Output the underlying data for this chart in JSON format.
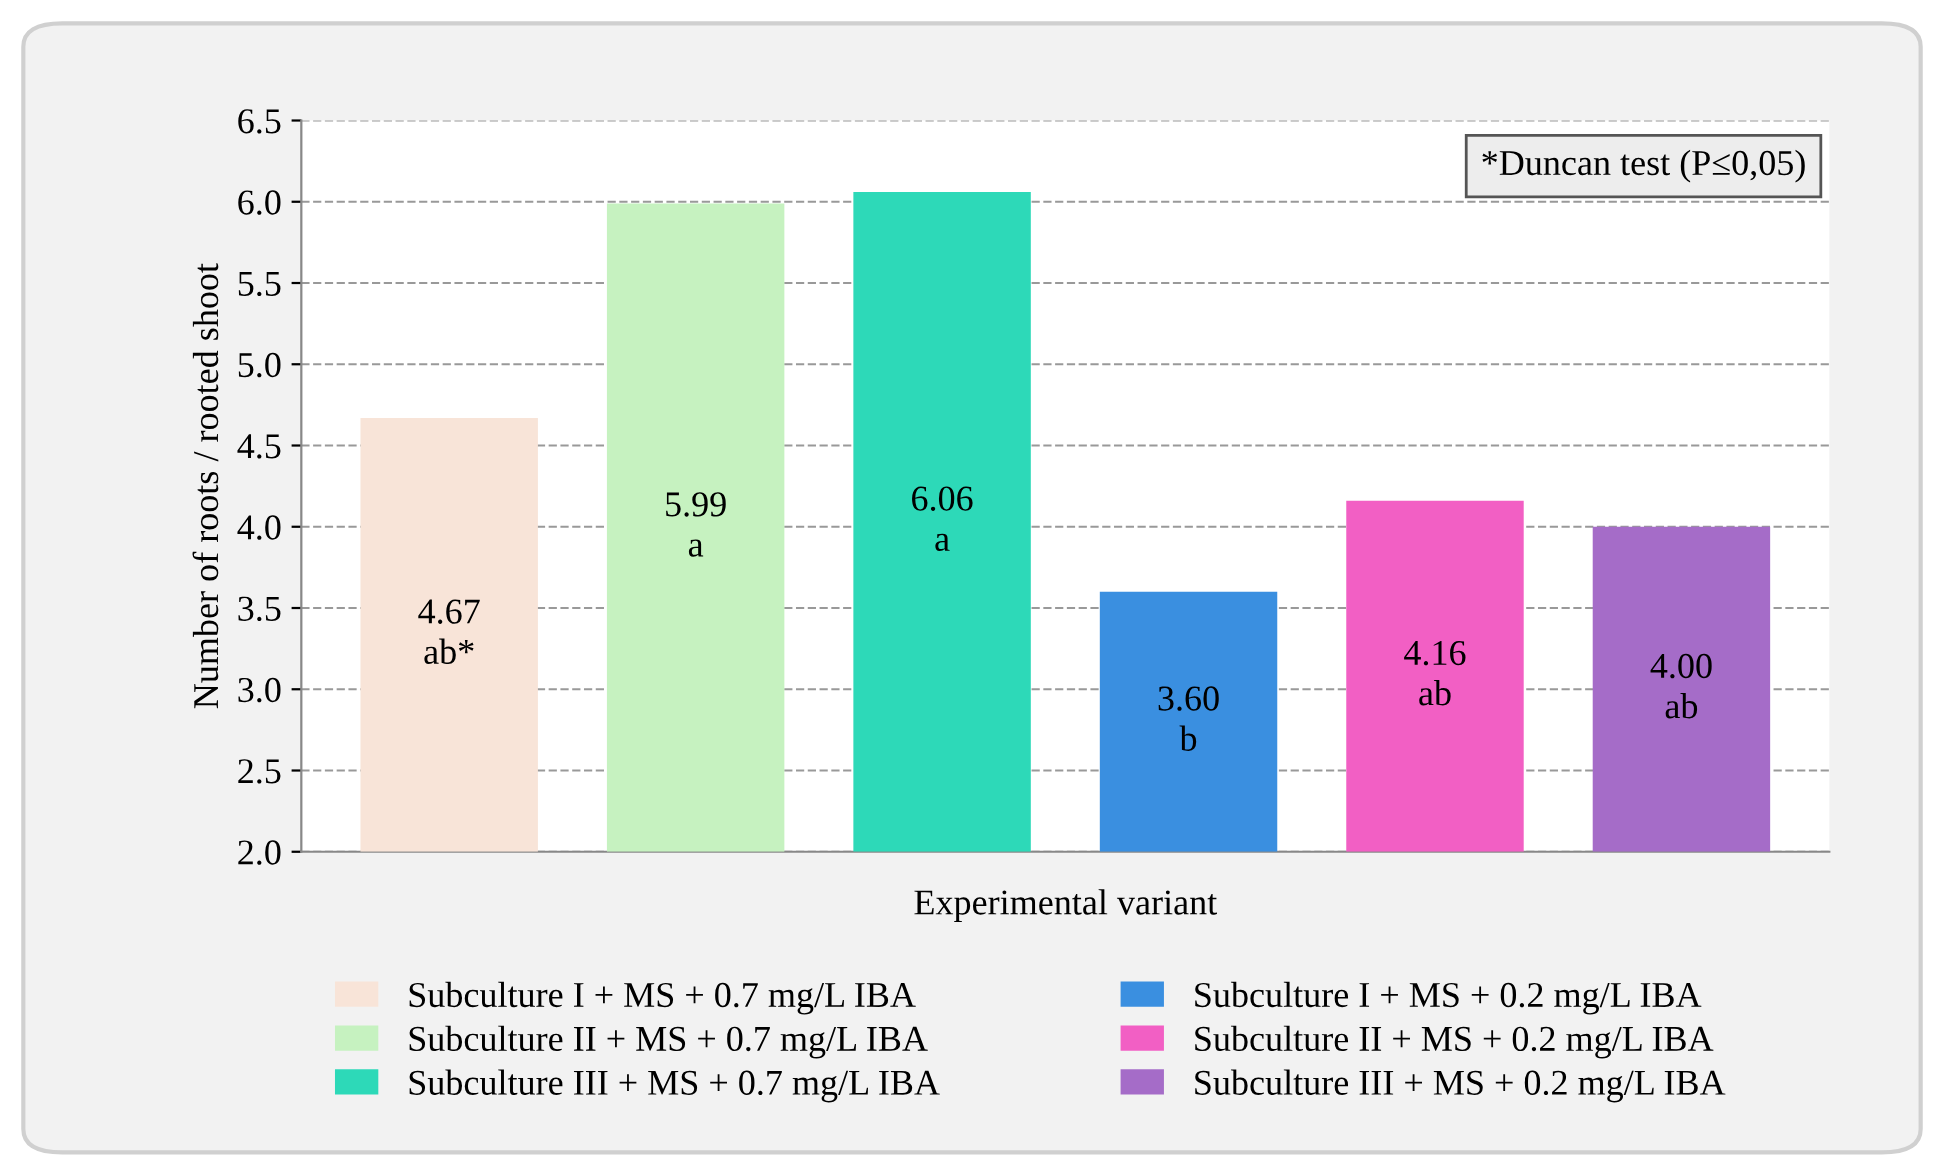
{
  "chart_data": {
    "type": "bar",
    "categories": [
      null,
      null,
      null,
      null,
      null,
      null
    ],
    "xlabel": "Experimental variant",
    "ylabel": "Number of roots / rooted shoot",
    "ylim": [
      2.0,
      6.5
    ],
    "yticks": [
      {
        "value": 2.0,
        "label": "2.0"
      },
      {
        "value": 2.5,
        "label": "2.5"
      },
      {
        "value": 3.0,
        "label": "3.0"
      },
      {
        "value": 3.5,
        "label": "3.5"
      },
      {
        "value": 4.0,
        "label": "4.0"
      },
      {
        "value": 4.5,
        "label": "4.5"
      },
      {
        "value": 5.0,
        "label": "5.0"
      },
      {
        "value": 5.5,
        "label": "5.5"
      },
      {
        "value": 6.0,
        "label": "6.0"
      },
      {
        "value": 6.5,
        "label": "6.5"
      }
    ],
    "grid": "y",
    "legend": "bottom",
    "series": [
      {
        "name": "Subculture I + MS + 0.7 mg/L IBA",
        "color": "#f8e4d8",
        "values": [
          4.67,
          null,
          null,
          null,
          null,
          null
        ],
        "value_labels": [
          "4.67\nab*",
          null,
          null,
          null,
          null,
          null
        ]
      },
      {
        "name": "Subculture II + MS + 0.7 mg/L IBA",
        "color": "#c6f2c0",
        "values": [
          null,
          5.99,
          null,
          null,
          null,
          null
        ],
        "value_labels": [
          null,
          "5.99\na",
          null,
          null,
          null,
          null
        ]
      },
      {
        "name": "Subculture III + MS + 0.7 mg/L IBA",
        "color": "#2dd9b8",
        "values": [
          null,
          null,
          6.06,
          null,
          null,
          null
        ],
        "value_labels": [
          null,
          null,
          "6.06\na",
          null,
          null,
          null
        ]
      },
      {
        "name": "Subculture I + MS + 0.2 mg/L IBA",
        "color": "#3a8fe0",
        "values": [
          null,
          null,
          null,
          3.6,
          null,
          null
        ],
        "value_labels": [
          null,
          null,
          null,
          "3.60\nb",
          null,
          null
        ]
      },
      {
        "name": "Subculture II + MS + 0.2 mg/L IBA",
        "color": "#f25fc4",
        "values": [
          null,
          null,
          null,
          null,
          4.16,
          null
        ],
        "value_labels": [
          null,
          null,
          null,
          null,
          "4.16\nab",
          null
        ]
      },
      {
        "name": "Subculture III + MS + 0.2 mg/L IBA",
        "color": "#a56cc8",
        "values": [
          null,
          null,
          null,
          null,
          null,
          4.0
        ],
        "value_labels": [
          null,
          null,
          null,
          null,
          null,
          "4.00\nab"
        ]
      }
    ],
    "annotations": [
      "*Duncan test (P≤0,05)"
    ]
  }
}
